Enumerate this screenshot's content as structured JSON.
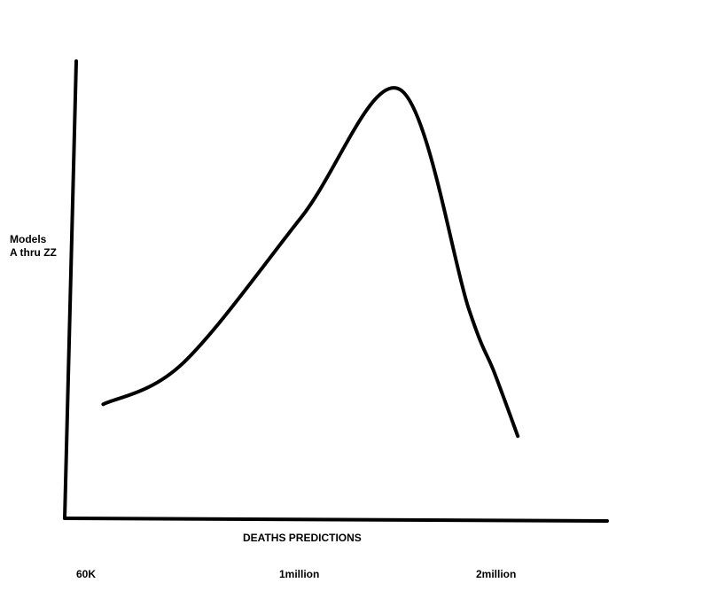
{
  "chart_data": {
    "type": "line",
    "title": "",
    "xlabel": "DEATHS PREDICTIONS",
    "ylabel_lines": [
      "Models",
      "A thru ZZ"
    ],
    "x_ticks": [
      "60K",
      "1million",
      "2million"
    ],
    "grid": false,
    "legend": "none",
    "line_color": "#000000",
    "axis_color": "#000000",
    "curve": {
      "shape": "single-peaked bell curve",
      "x_relative_to_ticks": [
        0.08,
        0.45,
        1.0,
        1.5,
        1.85,
        1.98,
        2.1
      ],
      "y_relative_height": [
        0.25,
        0.34,
        0.66,
        0.94,
        0.46,
        0.32,
        0.18
      ]
    }
  }
}
